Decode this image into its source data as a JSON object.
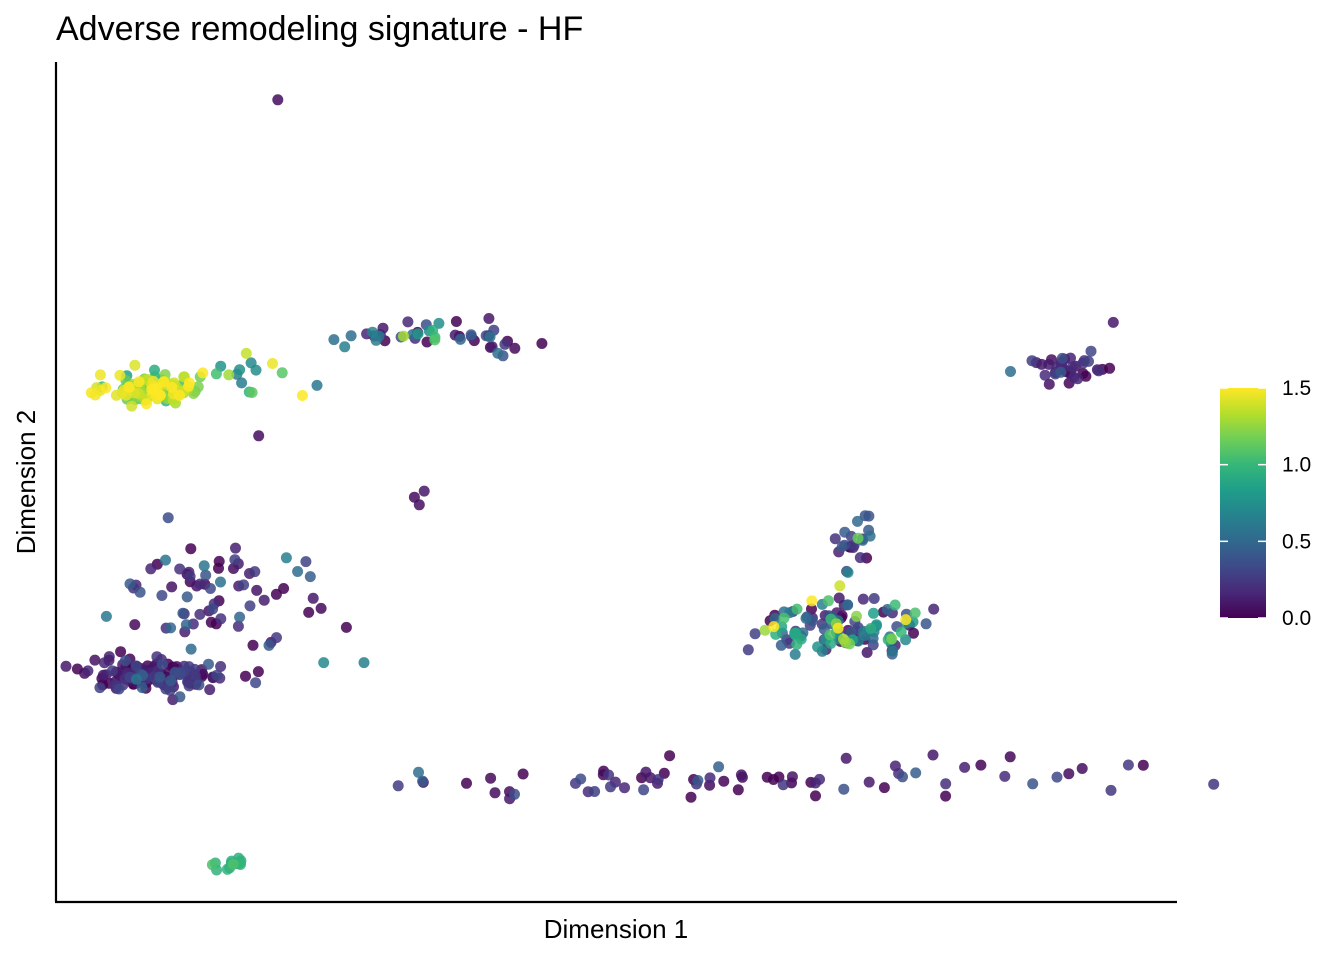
{
  "chart_data": {
    "type": "scatter",
    "title": "Adverse remodeling signature - HF",
    "xlabel": "Dimension 1",
    "ylabel": "Dimension 2",
    "x_ticks_shown": false,
    "y_ticks_shown": false,
    "grid": false,
    "xlim": [
      0,
      100
    ],
    "ylim": [
      0,
      100
    ],
    "color_scale": {
      "name": "viridis",
      "range": [
        0.0,
        1.5
      ],
      "ticks": [
        "0.0",
        "0.5",
        "1.0",
        "1.5"
      ],
      "tick_values": [
        0.0,
        0.5,
        1.0,
        1.5
      ],
      "stops": [
        "#440154",
        "#482878",
        "#3e4a89",
        "#31688e",
        "#26828e",
        "#1f9e89",
        "#35b779",
        "#6ece58",
        "#b5de2b",
        "#fde725"
      ],
      "legend_position": "right"
    },
    "clusters": [
      {
        "id": "upper-left",
        "cx": 8.8,
        "cy": 61.0,
        "sx": 2.0,
        "sy": 0.9,
        "n": 130,
        "mean": 1.25,
        "sd": 0.22
      },
      {
        "id": "upper-left-tail",
        "cx": 17.0,
        "cy": 63.0,
        "sx": 2.6,
        "sy": 1.6,
        "n": 14,
        "mean": 1.0,
        "sd": 0.3
      },
      {
        "id": "upper-mid",
        "cx": 33.5,
        "cy": 67.5,
        "sx": 4.5,
        "sy": 1.0,
        "n": 45,
        "mean": 0.35,
        "sd": 0.35
      },
      {
        "id": "upper-right",
        "cx": 90.5,
        "cy": 63.5,
        "sx": 2.2,
        "sy": 1.0,
        "n": 38,
        "mean": 0.15,
        "sd": 0.15
      },
      {
        "id": "lower-left-bottom",
        "cx": 9.0,
        "cy": 27.0,
        "sx": 3.0,
        "sy": 1.0,
        "n": 150,
        "mean": 0.12,
        "sd": 0.18
      },
      {
        "id": "lower-left-top",
        "cx": 15.5,
        "cy": 36.5,
        "sx": 4.5,
        "sy": 3.2,
        "n": 70,
        "mean": 0.15,
        "sd": 0.2
      },
      {
        "id": "right-mid",
        "cx": 70.5,
        "cy": 33.0,
        "sx": 3.5,
        "sy": 1.8,
        "n": 120,
        "mean": 0.55,
        "sd": 0.45
      },
      {
        "id": "right-mid-arm",
        "cx": 71.0,
        "cy": 42.5,
        "sx": 1.1,
        "sy": 2.2,
        "n": 22,
        "mean": 0.3,
        "sd": 0.3
      },
      {
        "id": "small-green",
        "cx": 15.3,
        "cy": 4.6,
        "sx": 0.9,
        "sy": 0.4,
        "n": 14,
        "mean": 0.95,
        "sd": 0.08
      },
      {
        "id": "bottom-strand",
        "cx": 63.0,
        "cy": 14.5,
        "sx": 16.5,
        "sy": 1.0,
        "n": 70,
        "mean": 0.12,
        "sd": 0.18
      },
      {
        "id": "mid-isolated",
        "cx": 32.6,
        "cy": 47.5,
        "sx": 0.4,
        "sy": 0.6,
        "n": 3,
        "mean": 0.05,
        "sd": 0.02
      }
    ],
    "isolated_points": [
      {
        "x": 19.8,
        "y": 95.5,
        "v": 0.05
      },
      {
        "x": 18.1,
        "y": 55.5,
        "v": 0.05
      },
      {
        "x": 23.3,
        "y": 61.5,
        "v": 0.6
      },
      {
        "x": 22.0,
        "y": 60.3,
        "v": 1.5
      },
      {
        "x": 20.2,
        "y": 63.0,
        "v": 1.1
      },
      {
        "x": 27.5,
        "y": 28.5,
        "v": 0.65
      },
      {
        "x": 23.9,
        "y": 28.5,
        "v": 0.7
      },
      {
        "x": 4.5,
        "y": 34.0,
        "v": 0.6
      },
      {
        "x": 88.0,
        "y": 64.0,
        "v": 0.1
      },
      {
        "x": 94.4,
        "y": 69.0,
        "v": 0.1
      },
      {
        "x": 78.3,
        "y": 17.5,
        "v": 0.1
      },
      {
        "x": 39.2,
        "y": 13.0,
        "v": 0.05
      },
      {
        "x": 40.5,
        "y": 12.3,
        "v": 0.1
      }
    ]
  }
}
